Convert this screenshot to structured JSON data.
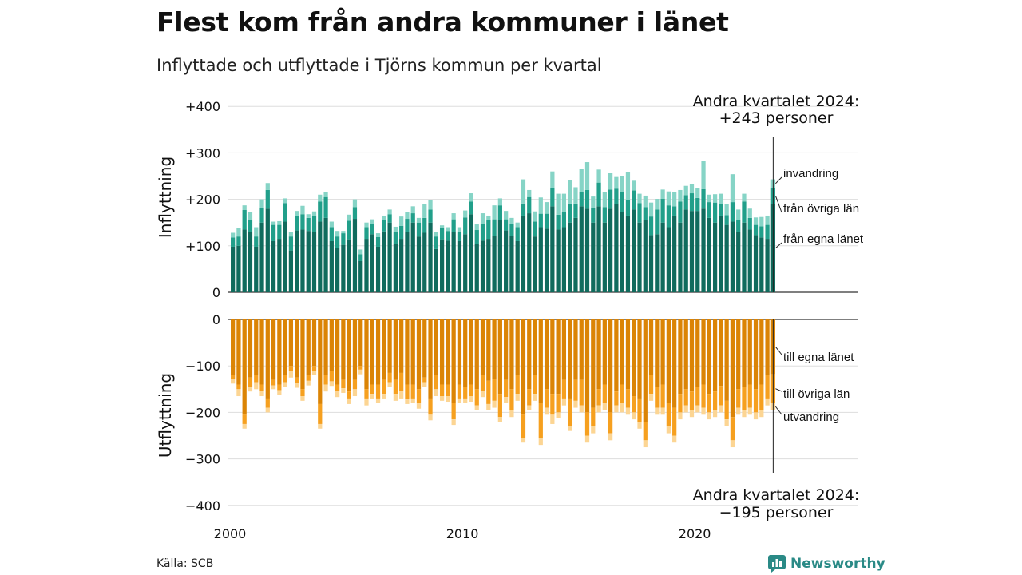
{
  "title": "Flest kom från andra kommuner i länet",
  "subtitle": "Inflyttade och utflyttade i Tjörns kommun per kvartal",
  "source": "Källa: SCB",
  "brand": "Newsworthy",
  "chart_data": {
    "type": "bar",
    "stacked": true,
    "grid": true,
    "colors": {
      "from_own_county": "#106b5d",
      "from_other_counties": "#219f8a",
      "immigration": "#86d4c6",
      "to_own_county": "#db8405",
      "to_other_counties": "#f6a01f",
      "emigration": "#fcd593"
    },
    "x": {
      "first_quarter": "2000 Q1",
      "last_quarter": "2024 Q2",
      "tick_labels": [
        "2000",
        "2010",
        "2020"
      ]
    },
    "top_panel": {
      "ylabel": "Inflyttning",
      "ylim": [
        0,
        400
      ],
      "ticks": [
        0,
        100,
        200,
        300,
        400
      ],
      "tick_labels": [
        "0",
        "+100",
        "+200",
        "+300",
        "+400"
      ],
      "annotation_line1": "Andra kvartalet 2024:",
      "annotation_line2": "+243 personer",
      "series_labels": [
        "invandring",
        "från övriga län",
        "från egna länet"
      ],
      "from_own_county": [
        98,
        100,
        135,
        130,
        98,
        150,
        180,
        110,
        115,
        152,
        90,
        133,
        135,
        132,
        130,
        152,
        160,
        110,
        95,
        102,
        114,
        158,
        67,
        115,
        125,
        98,
        131,
        150,
        104,
        115,
        130,
        150,
        120,
        128,
        150,
        93,
        114,
        111,
        130,
        110,
        125,
        168,
        104,
        111,
        115,
        122,
        155,
        133,
        122,
        110,
        165,
        170,
        120,
        140,
        137,
        185,
        135,
        140,
        150,
        160,
        185,
        180,
        150,
        185,
        150,
        180,
        190,
        173,
        165,
        178,
        150,
        155,
        123,
        125,
        150,
        140,
        165,
        150,
        178,
        175,
        175,
        180,
        160,
        150,
        165,
        145,
        152,
        130,
        150,
        135,
        123,
        118,
        115,
        190
      ],
      "from_other_counties": [
        20,
        20,
        42,
        25,
        22,
        32,
        40,
        35,
        30,
        40,
        30,
        32,
        33,
        28,
        34,
        43,
        45,
        30,
        25,
        25,
        40,
        25,
        15,
        25,
        22,
        21,
        24,
        18,
        25,
        28,
        28,
        20,
        30,
        32,
        28,
        27,
        25,
        21,
        27,
        20,
        36,
        27,
        30,
        36,
        40,
        35,
        32,
        24,
        25,
        30,
        26,
        35,
        32,
        29,
        32,
        40,
        32,
        32,
        41,
        31,
        31,
        40,
        31,
        51,
        33,
        41,
        33,
        42,
        33,
        41,
        42,
        28,
        40,
        53,
        51,
        47,
        20,
        45,
        31,
        38,
        28,
        42,
        34,
        43,
        25,
        21,
        42,
        25,
        45,
        25,
        22,
        24,
        30,
        35
      ],
      "immigration": [
        10,
        19,
        10,
        17,
        20,
        18,
        15,
        7,
        8,
        10,
        10,
        10,
        18,
        8,
        10,
        15,
        10,
        12,
        12,
        5,
        13,
        17,
        10,
        10,
        10,
        8,
        10,
        10,
        12,
        20,
        15,
        15,
        10,
        30,
        20,
        10,
        5,
        8,
        13,
        10,
        15,
        18,
        12,
        23,
        10,
        30,
        15,
        18,
        13,
        10,
        52,
        15,
        22,
        35,
        25,
        35,
        45,
        40,
        50,
        35,
        50,
        60,
        25,
        28,
        33,
        35,
        25,
        35,
        60,
        21,
        20,
        25,
        30,
        23,
        20,
        30,
        30,
        25,
        20,
        20,
        22,
        60,
        16,
        18,
        22,
        24,
        60,
        23,
        17,
        20,
        16,
        20,
        20,
        18
      ]
    },
    "bottom_panel": {
      "ylabel": "Utflyttning",
      "ylim": [
        -400,
        0
      ],
      "ticks": [
        -400,
        -300,
        -200,
        -100,
        0
      ],
      "tick_labels": [
        "−400",
        "−300",
        "−200",
        "−100",
        "0"
      ],
      "annotation_line1": "Andra kvartalet 2024:",
      "annotation_line2": "−195 personer",
      "series_labels": [
        "till egna länet",
        "till övriga län",
        "utvandring"
      ],
      "to_own_county": [
        -120,
        -140,
        -205,
        -125,
        -120,
        -140,
        -170,
        -130,
        -140,
        -120,
        -100,
        -125,
        -150,
        -120,
        -100,
        -182,
        -120,
        -110,
        -140,
        -130,
        -155,
        -130,
        -100,
        -150,
        -140,
        -140,
        -130,
        -115,
        -130,
        -115,
        -140,
        -140,
        -150,
        -125,
        -170,
        -120,
        -140,
        -140,
        -180,
        -140,
        -145,
        -140,
        -150,
        -120,
        -132,
        -128,
        -160,
        -130,
        -150,
        -120,
        -205,
        -150,
        -120,
        -180,
        -150,
        -160,
        -160,
        -130,
        -170,
        -130,
        -130,
        -200,
        -190,
        -150,
        -140,
        -200,
        -155,
        -140,
        -150,
        -165,
        -170,
        -220,
        -120,
        -145,
        -140,
        -180,
        -190,
        -160,
        -150,
        -155,
        -145,
        -140,
        -160,
        -155,
        -143,
        -175,
        -210,
        -150,
        -145,
        -140,
        -150,
        -140,
        -120,
        -118
      ],
      "to_other_counties": [
        -8,
        -10,
        -20,
        -20,
        -15,
        -13,
        -20,
        -12,
        -12,
        -15,
        -10,
        -12,
        -15,
        -12,
        -10,
        -43,
        -20,
        -23,
        -15,
        -18,
        -15,
        -20,
        -8,
        -20,
        -20,
        -30,
        -30,
        -20,
        -30,
        -40,
        -32,
        -30,
        -30,
        -10,
        -35,
        -30,
        -25,
        -25,
        -35,
        -30,
        -25,
        -25,
        -35,
        -35,
        -50,
        -47,
        -50,
        -37,
        -45,
        -40,
        -50,
        -35,
        -40,
        -75,
        -40,
        -45,
        -40,
        -40,
        -60,
        -45,
        -55,
        -50,
        -40,
        -35,
        -40,
        -45,
        -30,
        -40,
        -40,
        -35,
        -50,
        -40,
        -40,
        -45,
        -50,
        -50,
        -60,
        -40,
        -35,
        -40,
        -40,
        -50,
        -40,
        -40,
        -42,
        -40,
        -50,
        -40,
        -50,
        -50,
        -50,
        -55,
        -50,
        -62
      ],
      "emigration": [
        -10,
        -15,
        -10,
        -10,
        -15,
        -12,
        -10,
        -8,
        -10,
        -10,
        -15,
        -10,
        -10,
        -10,
        -10,
        -10,
        -15,
        -10,
        -12,
        -10,
        -12,
        -15,
        -10,
        -15,
        -10,
        -10,
        -10,
        -10,
        -15,
        -15,
        -10,
        -10,
        -12,
        -10,
        -12,
        -15,
        -10,
        -12,
        -12,
        -10,
        -10,
        -12,
        -10,
        -12,
        -13,
        -15,
        -10,
        -13,
        -15,
        -15,
        -10,
        -10,
        -15,
        -15,
        -15,
        -20,
        -12,
        -15,
        -10,
        -15,
        -15,
        -15,
        -15,
        -15,
        -15,
        -15,
        -15,
        -20,
        -15,
        -15,
        -15,
        -15,
        -15,
        -15,
        -15,
        -15,
        -15,
        -15,
        -15,
        -15,
        -15,
        -15,
        -15,
        -15,
        -15,
        -15,
        -15,
        -15,
        -15,
        -15,
        -15,
        -15,
        -15,
        -15
      ]
    }
  }
}
